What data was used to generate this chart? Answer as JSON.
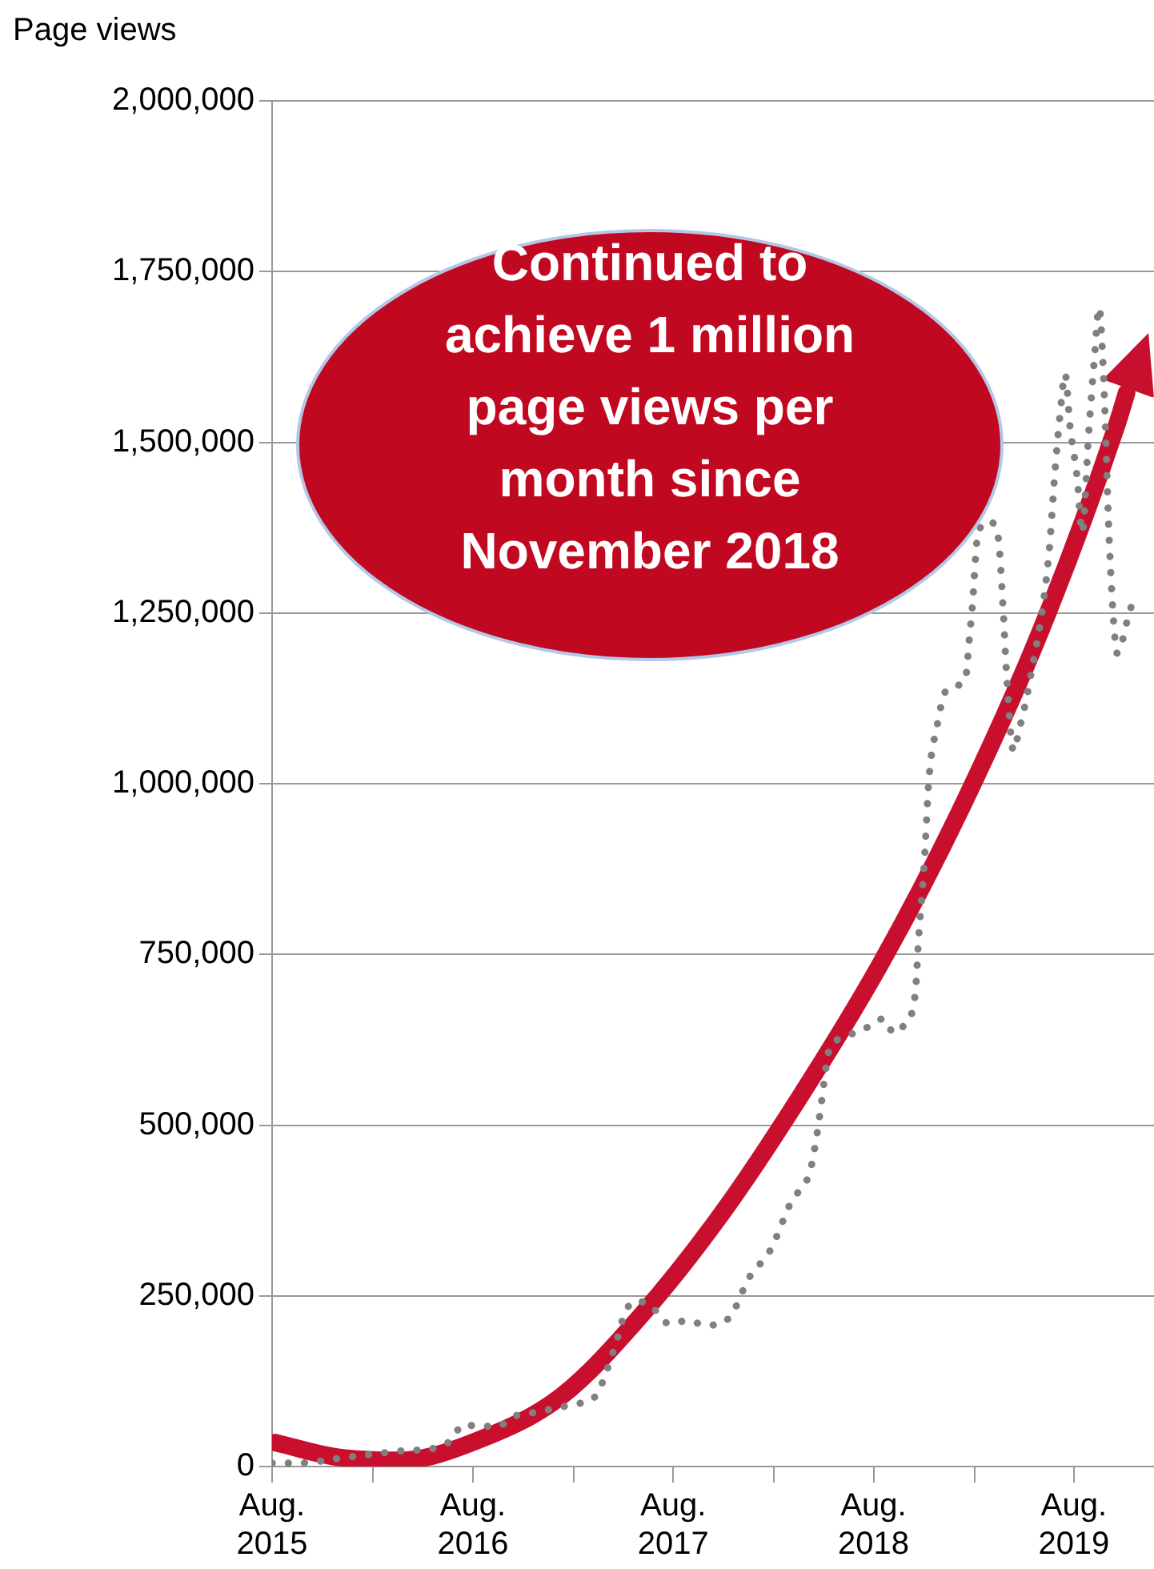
{
  "chart_data": {
    "type": "line",
    "ylabel": "Page views",
    "annotations": [
      "Continued to achieve 1 million page views per month since November 2018"
    ],
    "x": [
      "2015-08-01",
      "2015-09-14",
      "2015-12-19",
      "2016-03-25",
      "2016-05-28",
      "2016-06-24",
      "2016-07-13",
      "2016-08-16",
      "2016-09-16",
      "2016-10-13",
      "2016-11-13",
      "2017-02-07",
      "2017-03-10",
      "2017-04-16",
      "2017-05-04",
      "2017-05-22",
      "2017-06-19",
      "2017-07-25",
      "2017-08-28",
      "2017-09-28",
      "2017-10-28",
      "2017-11-19",
      "2017-12-16",
      "2018-01-25",
      "2018-03-04",
      "2018-04-07",
      "2018-04-19",
      "2018-04-28",
      "2018-05-07",
      "2018-05-13",
      "2018-06-04",
      "2018-07-28",
      "2018-08-19",
      "2018-09-07",
      "2018-09-25",
      "2018-10-16",
      "2018-10-22",
      "2018-11-01",
      "2018-11-10",
      "2018-11-25",
      "2018-12-10",
      "2019-01-01",
      "2019-01-16",
      "2019-01-22",
      "2019-01-28",
      "2019-02-07",
      "2019-02-27",
      "2019-03-16",
      "2019-03-25",
      "2019-04-01",
      "2019-04-13",
      "2019-04-22",
      "2019-05-13",
      "2019-06-16",
      "2019-06-28",
      "2019-07-07",
      "2019-07-16",
      "2019-07-25",
      "2019-08-07",
      "2019-08-16",
      "2019-08-28",
      "2019-09-07",
      "2019-09-16",
      "2019-09-25",
      "2019-10-04",
      "2019-10-13",
      "2019-10-19",
      "2019-11-07",
      "2019-11-16"
    ],
    "series": [
      {
        "color": "#808080",
        "values": [
          5000,
          5000,
          14000,
          23000,
          28000,
          40000,
          61000,
          59000,
          59000,
          73000,
          78000,
          92000,
          101000,
          174000,
          223000,
          242000,
          237000,
          209000,
          214000,
          207000,
          209000,
          228000,
          275000,
          317000,
          388000,
          432000,
          482000,
          533000,
          588000,
          613000,
          627000,
          646000,
          656000,
          635000,
          646000,
          693000,
          773000,
          879000,
          1008000,
          1086000,
          1135000,
          1144000,
          1156000,
          1208000,
          1260000,
          1365000,
          1384000,
          1361000,
          1257000,
          1152000,
          1048000,
          1074000,
          1152000,
          1332000,
          1462000,
          1542000,
          1600000,
          1523000,
          1448000,
          1368000,
          1513000,
          1619000,
          1697000,
          1577000,
          1365000,
          1231000,
          1191000,
          1241000,
          1267000
        ]
      },
      {
        "type": "line",
        "color": "#c8102e",
        "line_style": "solid",
        "x": [
          "2015-08-07",
          "2015-11-26",
          "2016-03-21",
          "2016-08-15",
          "2017-01-09",
          "2017-06-03",
          "2017-10-27",
          "2018-03-21",
          "2018-08-15",
          "2019-01-09",
          "2019-06-03",
          "2019-10-18",
          "2019-11-05"
        ],
        "values": [
          35000,
          14000,
          9000,
          40000,
          103000,
          221000,
          369000,
          543000,
          738000,
          966000,
          1227000,
          1525000,
          1572000
        ]
      }
    ],
    "xlim": [
      "2015-08-01",
      "2019-12-25"
    ],
    "xticks": [
      {
        "value": "2015-08",
        "label": "Aug. 2015"
      },
      {
        "value": "2016-02",
        "label": null
      },
      {
        "value": "2016-08",
        "label": "Aug. 2016"
      },
      {
        "value": "2017-02",
        "label": null
      },
      {
        "value": "2017-08",
        "label": "Aug. 2017"
      },
      {
        "value": "2018-02",
        "label": null
      },
      {
        "value": "2018-08",
        "label": "Aug. 2018"
      },
      {
        "value": "2019-02",
        "label": null
      },
      {
        "value": "2019-08",
        "label": "Aug. 2019"
      }
    ],
    "ylim": [
      0,
      2000000
    ],
    "yticks": [
      {
        "value": 0,
        "label": "0"
      },
      {
        "value": 250000,
        "label": "250,000"
      },
      {
        "value": 500000,
        "label": "500,000"
      },
      {
        "value": 750000,
        "label": "750,000"
      },
      {
        "value": 1000000,
        "label": "1,000,000"
      },
      {
        "value": 1250000,
        "label": "1,250,000"
      },
      {
        "value": 1500000,
        "label": "1,500,000"
      },
      {
        "value": 1750000,
        "label": "1,750,000"
      },
      {
        "value": 2000000,
        "label": "2,000,000"
      }
    ],
    "grid": "y",
    "legend": false,
    "marker": "none",
    "line_style": "dotted"
  }
}
